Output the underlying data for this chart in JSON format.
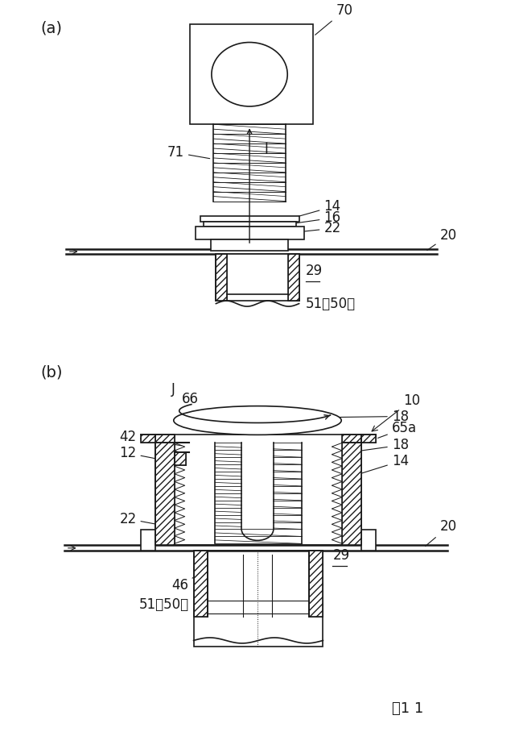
{
  "bg_color": "#ffffff",
  "line_color": "#1a1a1a",
  "fig_label": "図1 1",
  "panel_a_label": "(a)",
  "panel_b_label": "(b)"
}
